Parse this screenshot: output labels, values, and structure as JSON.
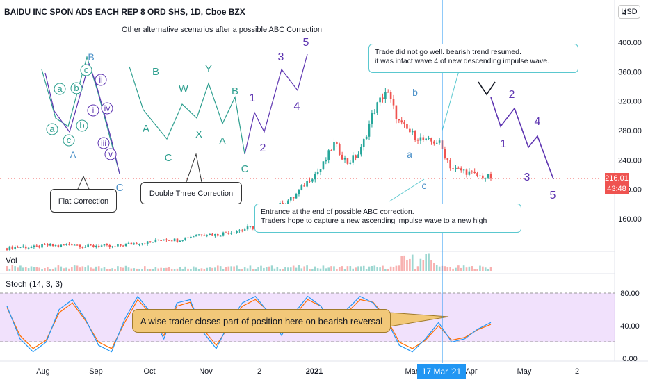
{
  "header": {
    "title": "BAIDU INC SPON ADS EACH REP 8 ORD SHS, 1D, Cboe BZX",
    "currency_button": "USD"
  },
  "colors": {
    "up": "#26a69a",
    "down": "#ef5350",
    "crosshair": "#2196f3",
    "pattern_green": "#2e9f8f",
    "pattern_purple": "#5e35b1",
    "callout_border": "#5ac8cf",
    "stoch_band": "#e6c8fa",
    "stoch_k": "#2196f3",
    "stoch_d": "#ff6d00",
    "note_fill": "#f2c879"
  },
  "annotations": {
    "scenarios_title": "Other alternative scenarios after a possible ABC Correction",
    "flat_correction": "Flat Correction",
    "double_three": "Double Three Correction",
    "trade_note_line1": "Trade did not go well. bearish trend resumed.",
    "trade_note_line2": "it was infact wave 4 of new descending impulse wave.",
    "entrance_line1": "Entrance at the end of possible ABC correction.",
    "entrance_line2": "Traders hope to capture a new ascending impulse wave to a new high",
    "stoch_note": "A wise trader closes part of position here on bearish reversal"
  },
  "labels": {
    "flat": [
      "a",
      "b",
      "c",
      "A",
      "B",
      "C",
      "i",
      "ii",
      "iii",
      "iv",
      "v",
      "a",
      "b",
      "c"
    ],
    "double_three": [
      "A",
      "B",
      "C",
      "W",
      "X",
      "Y",
      "A",
      "B",
      "C"
    ],
    "impulse_up": [
      "1",
      "2",
      "3",
      "4",
      "5"
    ],
    "abc_on_price": [
      "a",
      "b",
      "c"
    ],
    "impulse_down": [
      "1",
      "2",
      "3",
      "4",
      "5"
    ]
  },
  "panes": {
    "volume_label": "Vol",
    "stoch_label": "Stoch (14, 3, 3)"
  },
  "price_tag": {
    "price": "216.01",
    "countdown": "43:48"
  },
  "crosshair_date": "17 Mar '21",
  "chart_data": {
    "type": "candlestick",
    "title": "BAIDU INC SPON ADS EACH REP 8 ORD SHS, 1D, Cboe BZX",
    "x_ticks": [
      "Aug",
      "Sep",
      "Oct",
      "Nov",
      "2",
      "2021",
      "Mar",
      "Apr",
      "May",
      "2"
    ],
    "y_ticks": [
      160,
      200,
      240,
      280,
      320,
      360,
      400
    ],
    "y_top_partial": "4",
    "stoch_ticks": [
      "80.00",
      "40.00",
      "0.00"
    ],
    "last_price": 216.01,
    "price_series": {
      "dates": [
        "Jul 27",
        "Aug 3",
        "Aug 10",
        "Aug 17",
        "Aug 24",
        "Aug 31",
        "Sep 7",
        "Sep 14",
        "Sep 21",
        "Sep 28",
        "Oct 5",
        "Oct 12",
        "Oct 19",
        "Oct 26",
        "Nov 2",
        "Nov 9",
        "Nov 16",
        "Nov 23",
        "Nov 30",
        "Dec 7",
        "Dec 14",
        "Dec 21",
        "Dec 28",
        "Jan 4",
        "Jan 11",
        "Jan 19",
        "Jan 25",
        "Feb 1",
        "Feb 8",
        "Feb 16",
        "Feb 22",
        "Mar 1",
        "Mar 8",
        "Mar 15",
        "Mar 22",
        "Mar 29",
        "Apr 5",
        "Apr 12"
      ],
      "close": [
        120,
        122,
        121,
        124,
        123,
        126,
        122,
        124,
        121,
        125,
        127,
        128,
        133,
        131,
        136,
        140,
        138,
        142,
        145,
        150,
        168,
        180,
        190,
        212,
        228,
        262,
        236,
        250,
        305,
        335,
        290,
        275,
        265,
        265,
        228,
        225,
        218,
        216
      ]
    },
    "stochastic": {
      "k_period": 14,
      "d_period": 3,
      "smooth": 3,
      "upper_band": 80,
      "lower_band": 20,
      "k": [
        80,
        30,
        10,
        25,
        75,
        90,
        60,
        20,
        10,
        60,
        95,
        70,
        30,
        85,
        90,
        40,
        15,
        55,
        85,
        95,
        70,
        35,
        70,
        95,
        80,
        45,
        75,
        95,
        85,
        60,
        20,
        10,
        30,
        55,
        25,
        30,
        45,
        55
      ],
      "d": [
        78,
        35,
        15,
        28,
        70,
        85,
        58,
        25,
        15,
        55,
        90,
        68,
        35,
        80,
        86,
        45,
        20,
        50,
        80,
        90,
        72,
        40,
        66,
        90,
        80,
        50,
        70,
        90,
        86,
        62,
        25,
        15,
        28,
        50,
        28,
        32,
        44,
        52
      ]
    }
  }
}
